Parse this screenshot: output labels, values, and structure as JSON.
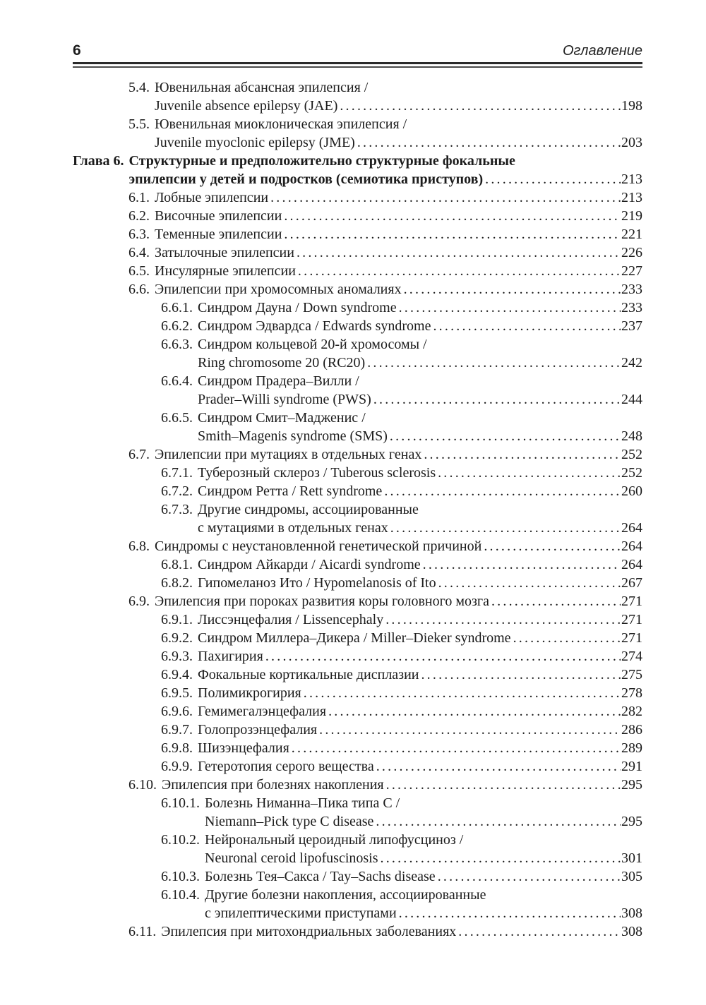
{
  "header": {
    "page_number": "6",
    "running_title": "Оглавление"
  },
  "colors": {
    "text": "#1c1c1c",
    "rule": "#2a2a2a",
    "background": "#ffffff"
  },
  "toc": {
    "entries": [
      {
        "num": "5.4.",
        "level": "section",
        "lines": [
          "Ювенильная абсансная эпилепсия /",
          "Juvenile absence epilepsy (JAE)"
        ],
        "page": "198"
      },
      {
        "num": "5.5.",
        "level": "section",
        "lines": [
          "Ювенильная миоклоническая эпилепсия /",
          "Juvenile myoclonic epilepsy (JME)"
        ],
        "page": "203"
      },
      {
        "num": "Глава 6.",
        "level": "chapter",
        "lines": [
          "Структурные и предположительно структурные фокальные",
          "эпилепсии у детей и подростков (семиотика приступов)"
        ],
        "page": "213"
      },
      {
        "num": "6.1.",
        "level": "section",
        "lines": [
          "Лобные эпилепсии"
        ],
        "page": "213"
      },
      {
        "num": "6.2.",
        "level": "section",
        "lines": [
          "Височные эпилепсии"
        ],
        "page": "219"
      },
      {
        "num": "6.3.",
        "level": "section",
        "lines": [
          "Теменные эпилепсии"
        ],
        "page": "221"
      },
      {
        "num": "6.4.",
        "level": "section",
        "lines": [
          "Затылочные эпилепсии"
        ],
        "page": "226"
      },
      {
        "num": "6.5.",
        "level": "section",
        "lines": [
          "Инсулярные эпилепсии"
        ],
        "page": "227"
      },
      {
        "num": "6.6.",
        "level": "section",
        "lines": [
          "Эпилепсии при хромосомных аномалиях"
        ],
        "page": "233"
      },
      {
        "num": "6.6.1.",
        "level": "subsection",
        "lines": [
          "Синдром Дауна / Down syndrome"
        ],
        "page": "233"
      },
      {
        "num": "6.6.2.",
        "level": "subsection",
        "lines": [
          "Синдром Эдвардса / Edwards syndrome"
        ],
        "page": "237"
      },
      {
        "num": "6.6.3.",
        "level": "subsection",
        "lines": [
          "Синдром кольцевой 20-й хромосомы /",
          "Ring chromosome 20 (RC20)"
        ],
        "page": "242"
      },
      {
        "num": "6.6.4.",
        "level": "subsection",
        "lines": [
          "Синдром Прадера–Вилли /",
          "Prader–Willi syndrome (PWS)"
        ],
        "page": "244"
      },
      {
        "num": "6.6.5.",
        "level": "subsection",
        "lines": [
          "Синдром Смит–Мадженис /",
          "Smith–Magenis syndrome (SMS)"
        ],
        "page": "248"
      },
      {
        "num": "6.7.",
        "level": "section",
        "lines": [
          "Эпилепсии при мутациях в отдельных генах"
        ],
        "page": "252"
      },
      {
        "num": "6.7.1.",
        "level": "subsection",
        "lines": [
          "Туберозный склероз / Tuberous sclerosis"
        ],
        "page": "252"
      },
      {
        "num": "6.7.2.",
        "level": "subsection",
        "lines": [
          "Синдром Ретта / Rett syndrome"
        ],
        "page": "260"
      },
      {
        "num": "6.7.3.",
        "level": "subsection",
        "lines": [
          "Другие синдромы, ассоциированные",
          "с мутациями в отдельных генах"
        ],
        "page": "264"
      },
      {
        "num": "6.8.",
        "level": "section",
        "lines": [
          "Синдромы с неустановленной генетической причиной"
        ],
        "page": "264"
      },
      {
        "num": "6.8.1.",
        "level": "subsection",
        "lines": [
          "Синдром Айкарди / Aicardi syndrome"
        ],
        "page": "264"
      },
      {
        "num": "6.8.2.",
        "level": "subsection",
        "lines": [
          "Гипомеланоз Ито / Hypomelanosis of Ito"
        ],
        "page": "267"
      },
      {
        "num": "6.9.",
        "level": "section",
        "lines": [
          "Эпилепсия при пороках развития коры головного мозга"
        ],
        "page": "271"
      },
      {
        "num": "6.9.1.",
        "level": "subsection",
        "lines": [
          "Лиссэнцефалия / Lissencephaly"
        ],
        "page": "271"
      },
      {
        "num": "6.9.2.",
        "level": "subsection",
        "lines": [
          "Синдром Миллера–Дикера / Miller–Dieker syndrome"
        ],
        "page": "271"
      },
      {
        "num": "6.9.3.",
        "level": "subsection",
        "lines": [
          "Пахигирия"
        ],
        "page": "274"
      },
      {
        "num": "6.9.4.",
        "level": "subsection",
        "lines": [
          "Фокальные кортикальные дисплазии"
        ],
        "page": "275"
      },
      {
        "num": "6.9.5.",
        "level": "subsection",
        "lines": [
          "Полимикрогирия"
        ],
        "page": "278"
      },
      {
        "num": "6.9.6.",
        "level": "subsection",
        "lines": [
          "Гемимегалэнцефалия"
        ],
        "page": "282"
      },
      {
        "num": "6.9.7.",
        "level": "subsection",
        "lines": [
          "Голопрозэнцефалия"
        ],
        "page": "286"
      },
      {
        "num": "6.9.8.",
        "level": "subsection",
        "lines": [
          "Шизэнцефалия"
        ],
        "page": "289"
      },
      {
        "num": "6.9.9.",
        "level": "subsection",
        "lines": [
          "Гетеротопия серого вещества"
        ],
        "page": "291"
      },
      {
        "num": "6.10.",
        "level": "section",
        "lines": [
          "Эпилепсия при болезнях накопления"
        ],
        "page": "295"
      },
      {
        "num": "6.10.1.",
        "level": "subsection",
        "lines": [
          "Болезнь Ниманна–Пика типа C /",
          "Niemann–Pick type C disease"
        ],
        "page": "295"
      },
      {
        "num": "6.10.2.",
        "level": "subsection",
        "lines": [
          "Нейрональный цероидный липофусциноз /",
          "Neuronal ceroid lipofuscinosis"
        ],
        "page": "301"
      },
      {
        "num": "6.10.3.",
        "level": "subsection",
        "lines": [
          "Болезнь Тея–Сакса / Tay–Sachs disease"
        ],
        "page": "305"
      },
      {
        "num": "6.10.4.",
        "level": "subsection",
        "lines": [
          "Другие болезни накопления, ассоциированные",
          "с эпилептическими приступами"
        ],
        "page": "308"
      },
      {
        "num": "6.11.",
        "level": "section",
        "lines": [
          "Эпилепсия при митохондриальных заболеваниях"
        ],
        "page": "308"
      }
    ]
  }
}
